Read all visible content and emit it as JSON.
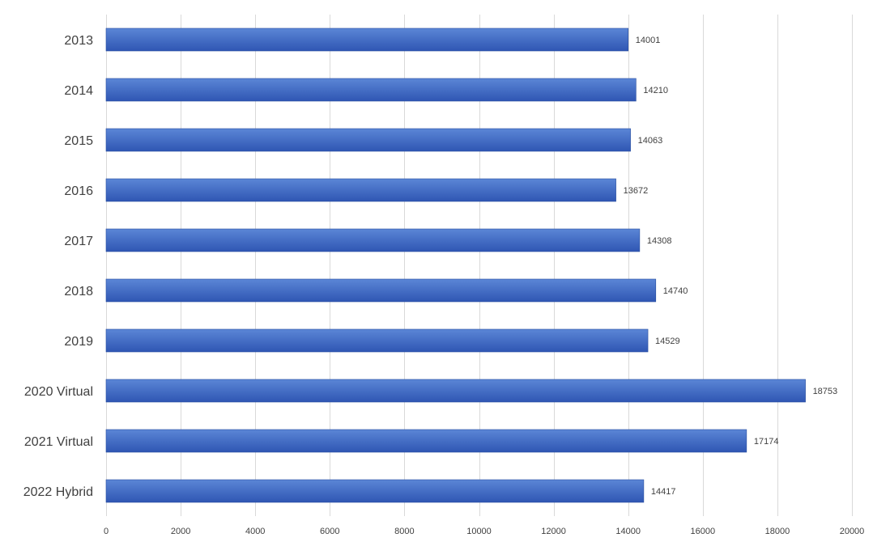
{
  "chart_data": {
    "type": "bar",
    "orientation": "horizontal",
    "title": "",
    "xlabel": "",
    "ylabel": "",
    "categories": [
      "2013",
      "2014",
      "2015",
      "2016",
      "2017",
      "2018",
      "2019",
      "2020 Virtual",
      "2021 Virtual",
      "2022 Hybrid"
    ],
    "values": [
      14001,
      14210,
      14063,
      13672,
      14308,
      14740,
      14529,
      18753,
      17174,
      14417
    ],
    "xlim": [
      0,
      20000
    ],
    "xticks": [
      0,
      2000,
      4000,
      6000,
      8000,
      10000,
      12000,
      14000,
      16000,
      18000,
      20000
    ],
    "grid": "vertical",
    "legend": "none",
    "data_labels": true,
    "colors": {
      "bar_top": "#5b86d6",
      "bar_bottom": "#2f56b3",
      "bar_edge": "#2a4f9f",
      "grid": "#d9d9d9",
      "text": "#404040"
    }
  }
}
